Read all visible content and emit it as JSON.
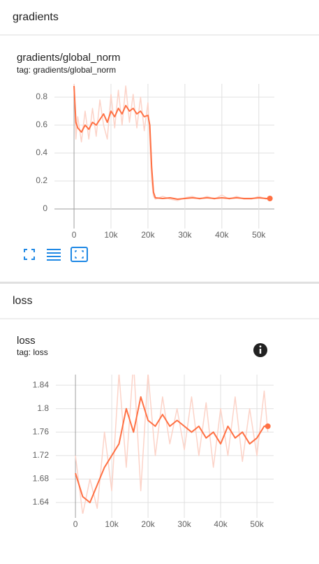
{
  "sections": [
    {
      "title": "gradients"
    },
    {
      "title": "loss"
    }
  ],
  "chart_data": [
    {
      "type": "line",
      "title": "gradients/global_norm",
      "subtitle": "tag: gradients/global_norm",
      "x": [
        0,
        500,
        1000,
        2000,
        3000,
        4000,
        5000,
        6000,
        7000,
        8000,
        9000,
        10000,
        11000,
        12000,
        13000,
        14000,
        15000,
        16000,
        17000,
        18000,
        19000,
        20000,
        20500,
        21000,
        21500,
        22000,
        24000,
        26000,
        28000,
        30000,
        32000,
        34000,
        36000,
        38000,
        40000,
        42000,
        44000,
        46000,
        48000,
        50000,
        52000,
        53000
      ],
      "series": [
        {
          "color": "#fcd3c8",
          "values": [
            0.9,
            0.5,
            0.66,
            0.48,
            0.7,
            0.5,
            0.72,
            0.52,
            0.78,
            0.6,
            0.5,
            0.82,
            0.58,
            0.85,
            0.6,
            0.88,
            0.62,
            0.82,
            0.58,
            0.8,
            0.56,
            0.76,
            0.5,
            0.2,
            0.09,
            0.07,
            0.09,
            0.07,
            0.06,
            0.08,
            0.09,
            0.07,
            0.09,
            0.07,
            0.1,
            0.07,
            0.09,
            0.07,
            0.07,
            0.09,
            0.07,
            0.08
          ]
        },
        {
          "color": "#ff7043",
          "values": [
            0.88,
            0.62,
            0.58,
            0.55,
            0.6,
            0.57,
            0.62,
            0.6,
            0.64,
            0.68,
            0.62,
            0.7,
            0.66,
            0.72,
            0.68,
            0.74,
            0.7,
            0.72,
            0.68,
            0.7,
            0.66,
            0.67,
            0.6,
            0.3,
            0.12,
            0.08,
            0.075,
            0.08,
            0.07,
            0.075,
            0.08,
            0.075,
            0.08,
            0.075,
            0.08,
            0.075,
            0.08,
            0.075,
            0.075,
            0.08,
            0.075,
            0.075
          ]
        }
      ],
      "xlim": [
        -5300,
        54200
      ],
      "ylim": [
        -0.11,
        0.895
      ],
      "xticks": [
        0,
        {
          "value": 10000,
          "label": "10k"
        },
        {
          "value": 20000,
          "label": "20k"
        },
        {
          "value": 30000,
          "label": "30k"
        },
        {
          "value": 40000,
          "label": "40k"
        },
        {
          "value": 50000,
          "label": "50k"
        }
      ],
      "yticks": [
        0,
        0.2,
        0.4,
        0.6,
        0.8
      ],
      "grid": true
    },
    {
      "type": "line",
      "title": "loss",
      "subtitle": "tag: loss",
      "x": [
        0,
        2000,
        4000,
        6000,
        8000,
        10000,
        12000,
        14000,
        16000,
        18000,
        20000,
        22000,
        24000,
        26000,
        28000,
        30000,
        32000,
        34000,
        36000,
        38000,
        40000,
        42000,
        44000,
        46000,
        48000,
        50000,
        52000,
        53000
      ],
      "series": [
        {
          "color": "#fcd3c8",
          "values": [
            1.72,
            1.62,
            1.68,
            1.63,
            1.76,
            1.66,
            1.86,
            1.7,
            1.88,
            1.66,
            1.86,
            1.72,
            1.82,
            1.74,
            1.8,
            1.73,
            1.82,
            1.72,
            1.81,
            1.7,
            1.8,
            1.72,
            1.82,
            1.71,
            1.8,
            1.72,
            1.83,
            1.76
          ]
        },
        {
          "color": "#ff7043",
          "values": [
            1.69,
            1.65,
            1.64,
            1.67,
            1.7,
            1.72,
            1.74,
            1.8,
            1.76,
            1.82,
            1.78,
            1.77,
            1.79,
            1.77,
            1.78,
            1.77,
            1.76,
            1.77,
            1.75,
            1.76,
            1.74,
            1.77,
            1.75,
            1.76,
            1.74,
            1.75,
            1.77,
            1.77
          ]
        }
      ],
      "xlim": [
        -5400,
        54600
      ],
      "ylim": [
        1.621,
        1.858
      ],
      "xticks": [
        0,
        {
          "value": 10000,
          "label": "10k"
        },
        {
          "value": 20000,
          "label": "20k"
        },
        {
          "value": 30000,
          "label": "30k"
        },
        {
          "value": 40000,
          "label": "40k"
        },
        {
          "value": 50000,
          "label": "50k"
        }
      ],
      "yticks": [
        1.64,
        1.68,
        1.72,
        1.76,
        1.8,
        1.84
      ],
      "grid": true
    }
  ]
}
